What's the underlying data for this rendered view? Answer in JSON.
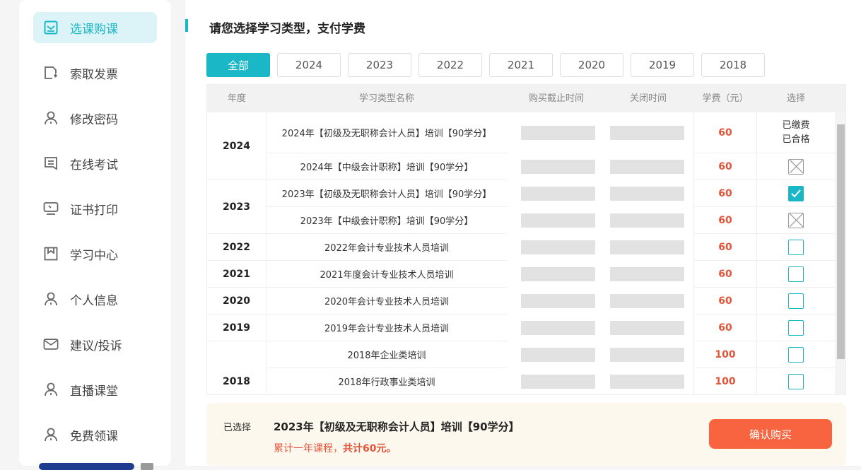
{
  "sidebar": {
    "items": [
      {
        "label": "选课购课",
        "icon": "checkbox-icon",
        "active": true
      },
      {
        "label": "索取发票",
        "icon": "document-plus-icon"
      },
      {
        "label": "修改密码",
        "icon": "user-icon"
      },
      {
        "label": "在线考试",
        "icon": "exam-icon"
      },
      {
        "label": "证书打印",
        "icon": "monitor-icon"
      },
      {
        "label": "学习中心",
        "icon": "book-icon"
      },
      {
        "label": "个人信息",
        "icon": "user-icon"
      },
      {
        "label": "建议/投诉",
        "icon": "mail-icon"
      },
      {
        "label": "直播课堂",
        "icon": "user-icon"
      },
      {
        "label": "免费领课",
        "icon": "user-icon"
      }
    ]
  },
  "page": {
    "title": "请您选择学习类型，支付学费"
  },
  "tabs": [
    "全部",
    "2024",
    "2023",
    "2022",
    "2021",
    "2020",
    "2019",
    "2018"
  ],
  "table": {
    "headers": [
      "年度",
      "学习类型名称",
      "购买截止时间",
      "关闭时间",
      "学费（元）",
      "选择"
    ],
    "groups": [
      {
        "year": "2024",
        "rows": [
          {
            "name": "2024年【初级及无职称会计人员】培训【90学分】",
            "fee": "60",
            "status": "已缴费\n已合格",
            "state": "paid"
          },
          {
            "name": "2024年【中级会计职称】培训【90学分】",
            "fee": "60",
            "state": "disabled"
          }
        ]
      },
      {
        "year": "2023",
        "rows": [
          {
            "name": "2023年【初级及无职称会计人员】培训【90学分】",
            "fee": "60",
            "state": "checked"
          },
          {
            "name": "2023年【中级会计职称】培训【90学分】",
            "fee": "60",
            "state": "disabled"
          }
        ]
      },
      {
        "year": "2022",
        "rows": [
          {
            "name": "2022年会计专业技术人员培训",
            "fee": "60",
            "state": "unchecked"
          }
        ]
      },
      {
        "year": "2021",
        "rows": [
          {
            "name": "2021年度会计专业技术人员培训",
            "fee": "60",
            "state": "unchecked"
          }
        ]
      },
      {
        "year": "2020",
        "rows": [
          {
            "name": "2020年会计专业技术人员培训",
            "fee": "60",
            "state": "unchecked"
          }
        ]
      },
      {
        "year": "2019",
        "rows": [
          {
            "name": "2019年会计专业技术人员培训",
            "fee": "60",
            "state": "unchecked"
          }
        ]
      },
      {
        "year": "2018",
        "rows": [
          {
            "name": "2018年企业类培训",
            "fee": "100",
            "state": "unchecked"
          },
          {
            "name": "2018年行政事业类培训",
            "fee": "100",
            "state": "unchecked"
          }
        ]
      }
    ]
  },
  "footer": {
    "label": "已选择",
    "selected": "2023年【初级及无职称会计人员】培训【90学分】",
    "summary_prefix": "累计一年课程，",
    "summary_total": "共计60元。",
    "button": "确认购买"
  },
  "colors": {
    "accent": "#1ab7c6",
    "price": "#e2553a",
    "buy": "#f8643f"
  }
}
